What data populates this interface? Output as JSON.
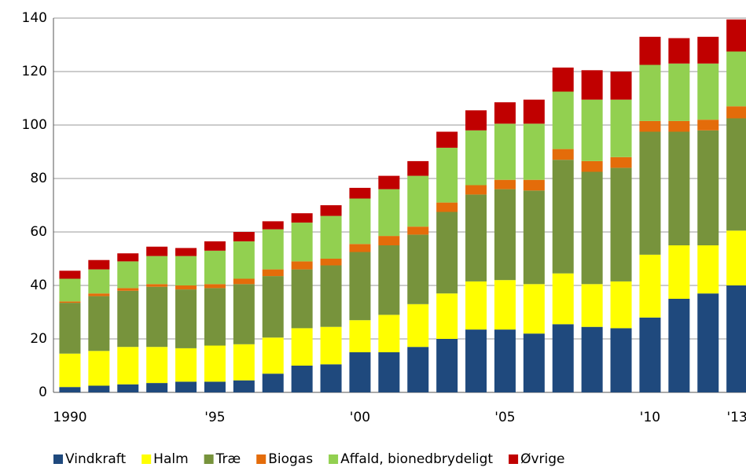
{
  "chart_data": {
    "type": "stacked_bar",
    "categories": [
      "1990",
      null,
      null,
      null,
      null,
      "'95",
      null,
      null,
      null,
      null,
      "'00",
      null,
      null,
      null,
      null,
      "'05",
      null,
      null,
      null,
      null,
      "'10",
      null,
      null,
      "'13"
    ],
    "series": [
      {
        "name": "Vindkraft",
        "color": "#1f497d",
        "values": [
          2,
          2.5,
          3,
          3.5,
          4,
          4,
          4.5,
          7,
          10,
          10.5,
          15,
          15,
          17,
          20,
          23.5,
          23.5,
          22,
          25.5,
          24.5,
          24,
          28,
          35,
          37,
          40
        ]
      },
      {
        "name": "Halm",
        "color": "#ffff00",
        "values": [
          12.5,
          13,
          14,
          13.5,
          12.5,
          13.5,
          13.5,
          13.5,
          14,
          14,
          12,
          14,
          16,
          17,
          18,
          18.5,
          18.5,
          19,
          16,
          17.5,
          23.5,
          20,
          18,
          20.5
        ]
      },
      {
        "name": "Træ",
        "color": "#77933c",
        "values": [
          19,
          20.5,
          21,
          22.5,
          22,
          21.5,
          22.5,
          23,
          22,
          23,
          25.5,
          26,
          26,
          30.5,
          32.5,
          34,
          35,
          42.5,
          42,
          42.5,
          46,
          42.5,
          43,
          42
        ]
      },
      {
        "name": "Biogas",
        "color": "#e46c0a",
        "values": [
          0.5,
          1,
          1,
          1,
          1.5,
          1.5,
          2,
          2.5,
          3,
          2.5,
          3,
          3.5,
          3,
          3.5,
          3.5,
          3.5,
          4,
          4,
          4,
          4,
          4,
          4,
          4,
          4.5
        ]
      },
      {
        "name": "Affald, bionedbrydeligt",
        "color": "#92d050",
        "values": [
          8.5,
          9,
          10,
          10.5,
          11,
          12.5,
          14,
          15,
          14.5,
          16,
          17,
          17.5,
          19,
          20.5,
          20.5,
          21,
          21,
          21.5,
          23,
          21.5,
          21,
          21.5,
          21,
          20.5
        ]
      },
      {
        "name": "Øvrige",
        "color": "#c00000",
        "values": [
          3,
          3.5,
          3,
          3.5,
          3,
          3.5,
          3.5,
          3,
          3.5,
          4,
          4,
          5,
          5.5,
          6,
          7.5,
          8,
          9,
          9,
          11,
          10.5,
          10.5,
          9.5,
          10,
          12
        ]
      }
    ],
    "ylim": [
      0,
      140
    ],
    "yticks": [
      0,
      20,
      40,
      60,
      80,
      100,
      120,
      140
    ],
    "grid": true,
    "legend": "bottom"
  }
}
